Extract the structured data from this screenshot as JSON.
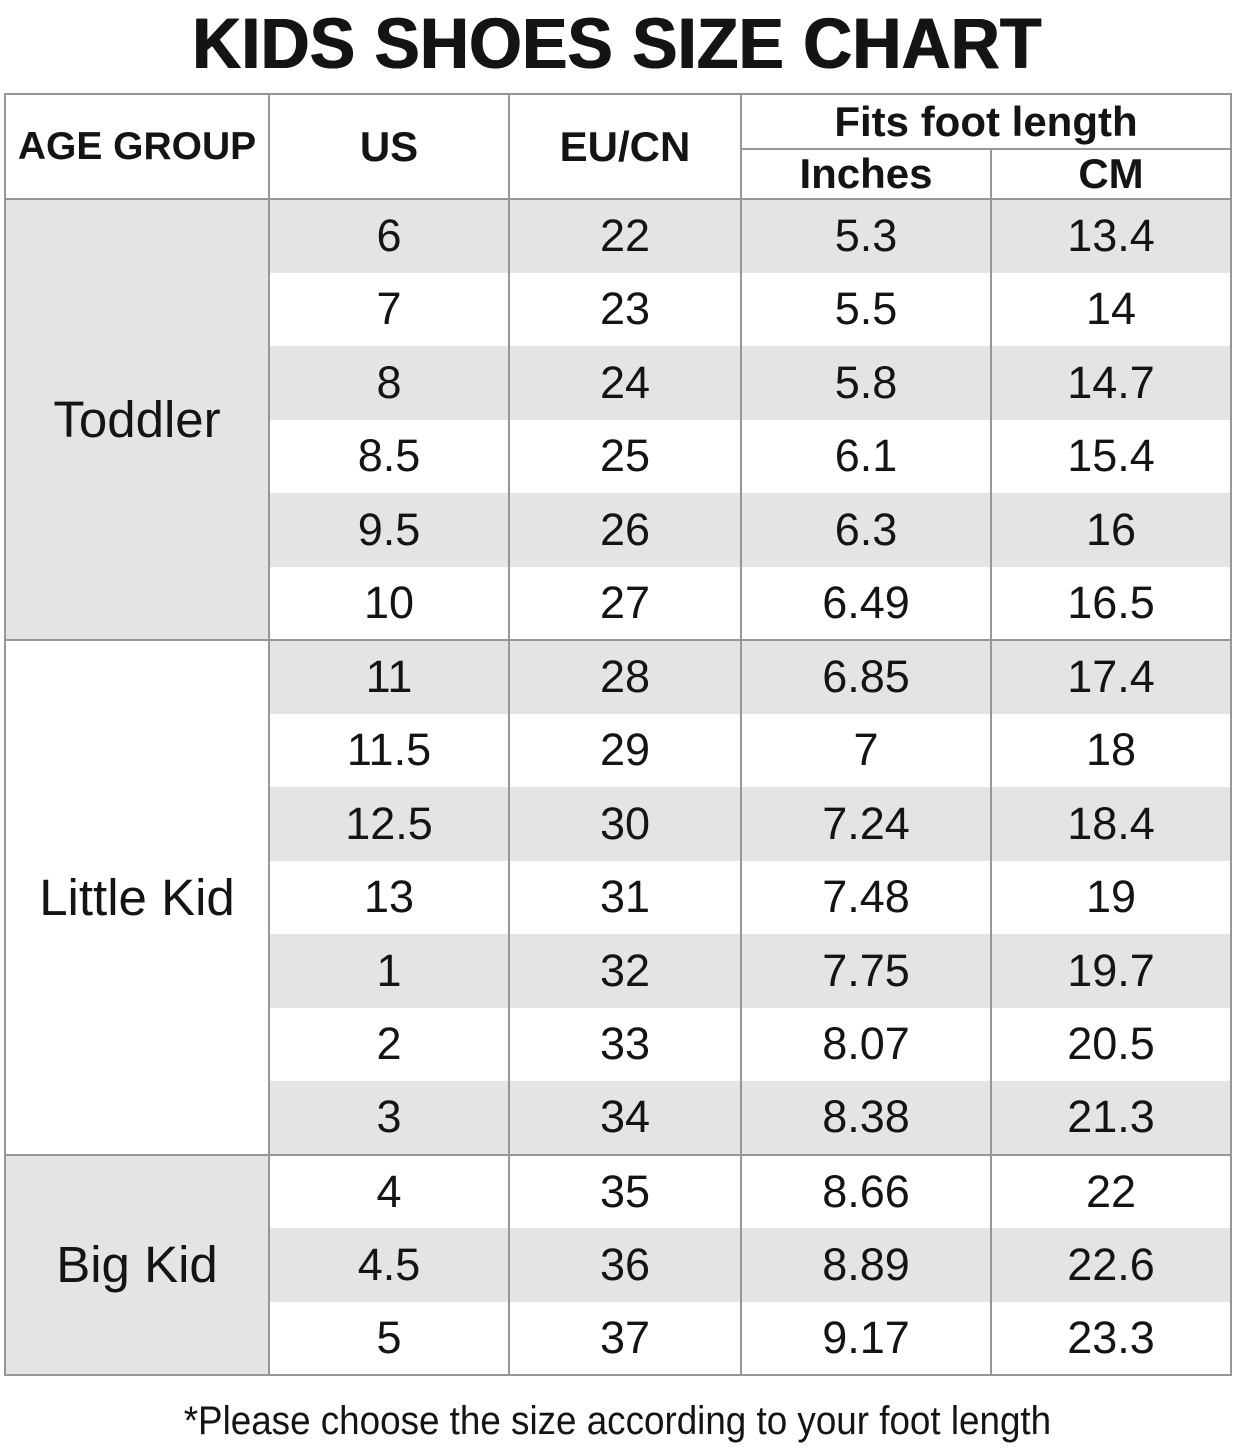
{
  "title": "KIDS SHOES SIZE CHART",
  "footnote": "*Please choose the size according to your foot length",
  "colors": {
    "stripe": "#e4e4e4",
    "border": "#979797",
    "text": "#141414",
    "background": "#ffffff"
  },
  "chart_data": {
    "type": "table",
    "title": "KIDS SHOES SIZE CHART",
    "header": {
      "age_group": "AGE GROUP",
      "us": "US",
      "eu_cn": "EU/CN",
      "fits_foot_length": "Fits foot length",
      "inches": "Inches",
      "cm": "CM"
    },
    "columns": [
      "AGE GROUP",
      "US",
      "EU/CN",
      "Fits foot length (Inches)",
      "Fits foot length (CM)"
    ],
    "sections": [
      {
        "age_group": "Toddler",
        "shaded": true,
        "rows": [
          [
            "6",
            "22",
            "5.3",
            "13.4"
          ],
          [
            "7",
            "23",
            "5.5",
            "14"
          ],
          [
            "8",
            "24",
            "5.8",
            "14.7"
          ],
          [
            "8.5",
            "25",
            "6.1",
            "15.4"
          ],
          [
            "9.5",
            "26",
            "6.3",
            "16"
          ],
          [
            "10",
            "27",
            "6.49",
            "16.5"
          ]
        ]
      },
      {
        "age_group": "Little Kid",
        "shaded": false,
        "rows": [
          [
            "11",
            "28",
            "6.85",
            "17.4"
          ],
          [
            "11.5",
            "29",
            "7",
            "18"
          ],
          [
            "12.5",
            "30",
            "7.24",
            "18.4"
          ],
          [
            "13",
            "31",
            "7.48",
            "19"
          ],
          [
            "1",
            "32",
            "7.75",
            "19.7"
          ],
          [
            "2",
            "33",
            "8.07",
            "20.5"
          ],
          [
            "3",
            "34",
            "8.38",
            "21.3"
          ]
        ]
      },
      {
        "age_group": "Big Kid",
        "shaded": true,
        "rows": [
          [
            "4",
            "35",
            "8.66",
            "22"
          ],
          [
            "4.5",
            "36",
            "8.89",
            "22.6"
          ],
          [
            "5",
            "37",
            "9.17",
            "23.3"
          ]
        ]
      }
    ]
  }
}
